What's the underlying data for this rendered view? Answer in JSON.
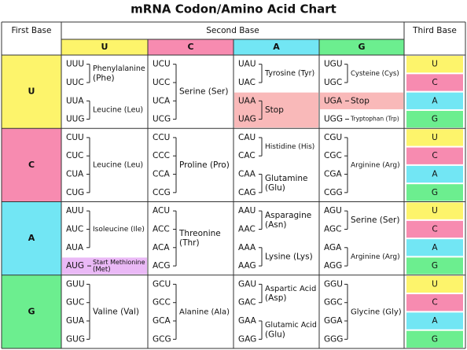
{
  "title": "mRNA Codon/Amino Acid Chart",
  "header": {
    "first_base": "First Base",
    "second_base": "Second Base",
    "third_base": "Third Base"
  },
  "second_bases": [
    {
      "letter": "U",
      "color": "#fdf46b"
    },
    {
      "letter": "C",
      "color": "#f78bb0"
    },
    {
      "letter": "A",
      "color": "#72e6f4"
    },
    {
      "letter": "G",
      "color": "#6cee8f"
    }
  ],
  "rows": [
    {
      "first_base": "U",
      "third_bases": [
        "U",
        "C",
        "A",
        "G"
      ],
      "cells": [
        {
          "groups": [
            {
              "codons": [
                "UUU",
                "UUC"
              ],
              "amino_acid": [
                "Phenylalanine",
                "(Phe)"
              ]
            },
            {
              "codons": [
                "UUA",
                "UUG"
              ],
              "amino_acid": [
                "Leucine (Leu)"
              ]
            }
          ]
        },
        {
          "groups": [
            {
              "codons": [
                "UCU",
                "UCC",
                "UCA",
                "UCG"
              ],
              "amino_acid": [
                "Serine (Ser)"
              ]
            }
          ]
        },
        {
          "groups": [
            {
              "codons": [
                "UAU",
                "UAC"
              ],
              "amino_acid": [
                "Tyrosine (Tyr)"
              ]
            },
            {
              "codons": [
                "UAA",
                "UAG"
              ],
              "amino_acid": [
                "Stop"
              ],
              "highlight": "#f9b9b9"
            }
          ]
        },
        {
          "groups": [
            {
              "codons": [
                "UGU",
                "UGC"
              ],
              "amino_acid": [
                "Cysteine (Cys)"
              ]
            },
            {
              "codons": [
                "UGA"
              ],
              "amino_acid": [
                "Stop"
              ],
              "highlight": "#f9b9b9"
            },
            {
              "codons": [
                "UGG"
              ],
              "amino_acid": [
                "Tryptophan (Trp)"
              ]
            }
          ]
        }
      ]
    },
    {
      "first_base": "C",
      "third_bases": [
        "U",
        "C",
        "A",
        "G"
      ],
      "cells": [
        {
          "groups": [
            {
              "codons": [
                "CUU",
                "CUC",
                "CUA",
                "CUG"
              ],
              "amino_acid": [
                "Leucine (Leu)"
              ]
            }
          ]
        },
        {
          "groups": [
            {
              "codons": [
                "CCU",
                "CCC",
                "CCA",
                "CCG"
              ],
              "amino_acid": [
                "Proline (Pro)"
              ]
            }
          ]
        },
        {
          "groups": [
            {
              "codons": [
                "CAU",
                "CAC"
              ],
              "amino_acid": [
                "Histidine (His)"
              ]
            },
            {
              "codons": [
                "CAA",
                "CAG"
              ],
              "amino_acid": [
                "Glutamine",
                "(Glu)"
              ]
            }
          ]
        },
        {
          "groups": [
            {
              "codons": [
                "CGU",
                "CGC",
                "CGA",
                "CGG"
              ],
              "amino_acid": [
                "Arginine (Arg)"
              ]
            }
          ]
        }
      ]
    },
    {
      "first_base": "A",
      "third_bases": [
        "U",
        "C",
        "A",
        "G"
      ],
      "cells": [
        {
          "groups": [
            {
              "codons": [
                "AUU",
                "AUC",
                "AUA"
              ],
              "amino_acid": [
                "Isoleucine (Ile)"
              ]
            },
            {
              "codons": [
                "AUG"
              ],
              "amino_acid": [
                "Start Methionine",
                "(Met)"
              ],
              "highlight": "#eab9f6"
            }
          ]
        },
        {
          "groups": [
            {
              "codons": [
                "ACU",
                "ACC",
                "ACA",
                "ACG"
              ],
              "amino_acid": [
                "Threonine",
                "(Thr)"
              ]
            }
          ]
        },
        {
          "groups": [
            {
              "codons": [
                "AAU",
                "AAC"
              ],
              "amino_acid": [
                "Asparagine",
                "(Asn)"
              ]
            },
            {
              "codons": [
                "AAA",
                "AAG"
              ],
              "amino_acid": [
                "Lysine (Lys)"
              ]
            }
          ]
        },
        {
          "groups": [
            {
              "codons": [
                "AGU",
                "AGC"
              ],
              "amino_acid": [
                "Serine (Ser)"
              ]
            },
            {
              "codons": [
                "AGA",
                "AGG"
              ],
              "amino_acid": [
                "Arginine (Arg)"
              ]
            }
          ]
        }
      ]
    },
    {
      "first_base": "G",
      "third_bases": [
        "U",
        "C",
        "A",
        "G"
      ],
      "cells": [
        {
          "groups": [
            {
              "codons": [
                "GUU",
                "GUC",
                "GUA",
                "GUG"
              ],
              "amino_acid": [
                "Valine (Val)"
              ]
            }
          ]
        },
        {
          "groups": [
            {
              "codons": [
                "GCU",
                "GCC",
                "GCA",
                "GCG"
              ],
              "amino_acid": [
                "Alanine (Ala)"
              ]
            }
          ]
        },
        {
          "groups": [
            {
              "codons": [
                "GAU",
                "GAC"
              ],
              "amino_acid": [
                "Aspartic Acid",
                "(Asp)"
              ]
            },
            {
              "codons": [
                "GAA",
                "GAG"
              ],
              "amino_acid": [
                "Glutamic Acid",
                "(Glu)"
              ]
            }
          ]
        },
        {
          "groups": [
            {
              "codons": [
                "GGU",
                "GGC",
                "GGA",
                "GGG"
              ],
              "amino_acid": [
                "Glycine (Gly)"
              ]
            }
          ]
        }
      ]
    }
  ]
}
